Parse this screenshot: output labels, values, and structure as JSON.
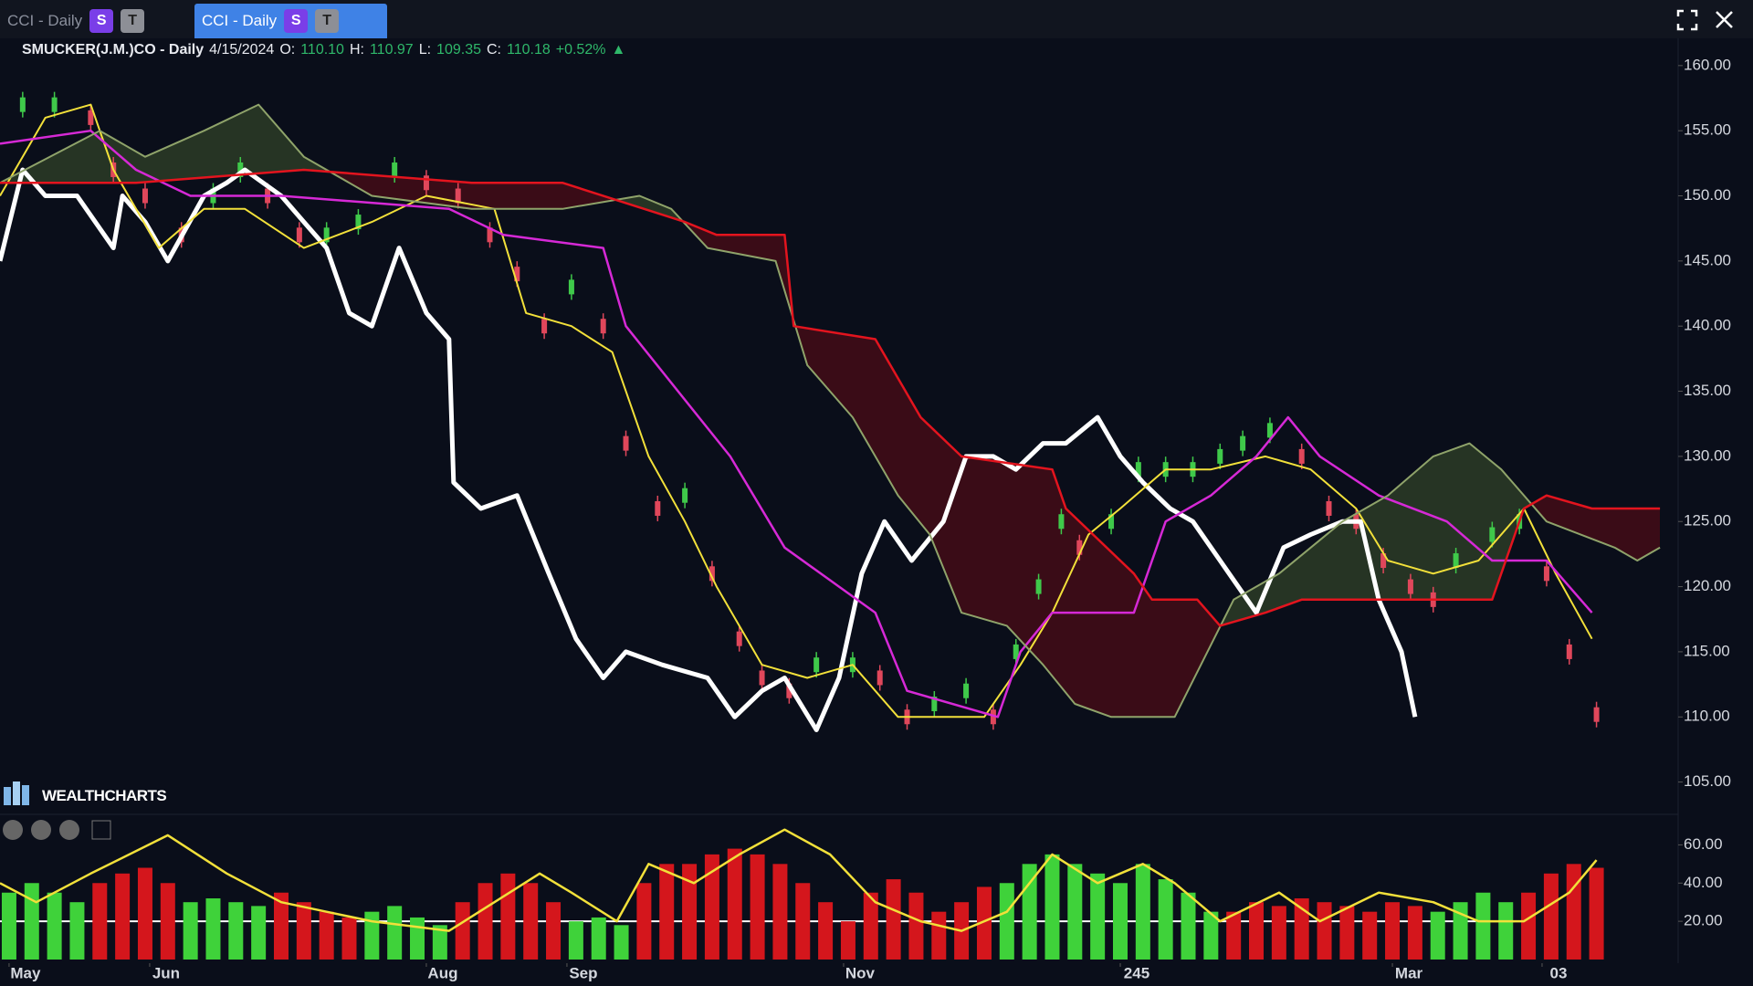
{
  "header": {
    "tabs": [
      {
        "label": "CCI - Daily",
        "badges": [
          "S",
          "T"
        ]
      },
      {
        "label": "CCI - Daily",
        "badges": [
          "S",
          "T"
        ]
      }
    ],
    "symbol": "SMUCKER(J.M.)CO - Daily",
    "date": "4/15/2024",
    "ohlc": [
      {
        "key": "O:",
        "value": "110.10"
      },
      {
        "key": "H:",
        "value": "110.97"
      },
      {
        "key": "L:",
        "value": "109.35"
      },
      {
        "key": "C:",
        "value": "110.18"
      }
    ],
    "change": "+0.52%",
    "brand": "WEALTHCHARTS"
  },
  "chart_data": [
    {
      "type": "line",
      "xlim": [
        -2,
        368
      ],
      "ylim": [
        102.8,
        161.6
      ],
      "yticks": [
        {
          "value": 105,
          "label": "105.00"
        },
        {
          "value": 110,
          "label": "110.00"
        },
        {
          "value": 115,
          "label": "115.00"
        },
        {
          "value": 120,
          "label": "120.00"
        },
        {
          "value": 125,
          "label": "125.00"
        },
        {
          "value": 130,
          "label": "130.00"
        },
        {
          "value": 135,
          "label": "135.00"
        },
        {
          "value": 140,
          "label": "140.00"
        },
        {
          "value": 145,
          "label": "145.00"
        },
        {
          "value": 150,
          "label": "150.00"
        },
        {
          "value": 155,
          "label": "155.00"
        },
        {
          "value": 160,
          "label": "160.00"
        }
      ],
      "cloud_between": [
        4,
        5
      ],
      "cloud_colors": [
        "#263424",
        "#3a0c17"
      ],
      "series": [
        {
          "style": "candle",
          "color": "#3fc94a",
          "down_color": "#e0475b",
          "x": [
            3,
            10,
            18,
            23,
            30,
            38,
            45,
            51,
            57,
            64,
            70,
            77,
            85,
            92,
            99,
            106,
            112,
            118,
            124,
            131,
            136,
            143,
            149,
            155,
            161,
            166,
            172,
            178,
            186,
            192,
            198,
            204,
            211,
            217,
            222,
            227,
            232,
            236,
            243,
            249,
            255,
            261,
            267,
            272,
            278,
            285,
            291,
            297,
            303,
            309,
            314,
            319,
            327,
            333,
            339,
            344,
            350
          ],
          "values": [
            157,
            157,
            156,
            152,
            150,
            147,
            150,
            152,
            150,
            147,
            147,
            148,
            152,
            151,
            150,
            147,
            144,
            140,
            143,
            140,
            131,
            126,
            127,
            121,
            116,
            113,
            112,
            114,
            114,
            113,
            110,
            111,
            112,
            110,
            115,
            120,
            125,
            123,
            125,
            129,
            129,
            129,
            130,
            131,
            132,
            130,
            126,
            125,
            122,
            120,
            119,
            122,
            124,
            125,
            121,
            115,
            110.18
          ]
        },
        {
          "style": "line",
          "color": "#ffffff",
          "width": 5,
          "x": [
            -2,
            3,
            8,
            15,
            23,
            25,
            30,
            35,
            43,
            48,
            52,
            60,
            65,
            70,
            75,
            80,
            86,
            92,
            97,
            98,
            104,
            112,
            119,
            125,
            131,
            136,
            144,
            154,
            160,
            166,
            171,
            178,
            183,
            188,
            193,
            199,
            206,
            211,
            217,
            222,
            228,
            233,
            240,
            245,
            250,
            256,
            261,
            267,
            275,
            281,
            287,
            294,
            298,
            302,
            307,
            310
          ],
          "values": [
            145,
            152,
            150,
            150,
            146,
            150,
            148,
            145,
            150,
            151,
            152,
            150,
            148,
            146,
            141,
            140,
            146,
            141,
            139,
            128,
            126,
            127,
            121,
            116,
            113,
            115,
            114,
            113,
            110,
            112,
            113,
            109,
            113,
            121,
            125,
            122,
            125,
            130,
            130,
            129,
            131,
            131,
            133,
            130,
            128,
            126,
            125,
            122,
            118,
            123,
            124,
            125,
            125,
            119,
            115,
            110
          ]
        },
        {
          "style": "line",
          "color": "#f2e03a",
          "width": 2,
          "x": [
            -2,
            8,
            18,
            23,
            33,
            43,
            52,
            65,
            80,
            92,
            107,
            114,
            124,
            133,
            141,
            149,
            156,
            166,
            176,
            186,
            196,
            206,
            215,
            223,
            230,
            238,
            245,
            255,
            265,
            277,
            287,
            297,
            304,
            314,
            324,
            334,
            341,
            349
          ],
          "values": [
            150,
            156,
            157,
            152,
            146,
            149,
            149,
            146,
            148,
            150,
            149,
            141,
            140,
            138,
            130,
            125,
            120,
            114,
            113,
            114,
            110,
            110,
            110,
            114,
            118,
            124,
            126,
            129,
            129,
            130,
            129,
            126,
            122,
            121,
            122,
            126,
            121,
            116
          ]
        },
        {
          "style": "line",
          "color": "#d629d6",
          "width": 2.5,
          "x": [
            -2,
            18,
            28,
            40,
            60,
            97,
            109,
            131,
            136,
            159,
            171,
            183,
            191,
            198,
            218,
            223,
            230,
            248,
            255,
            265,
            275,
            282,
            289,
            302,
            317,
            327,
            339,
            349
          ],
          "values": [
            154,
            155,
            152,
            150,
            150,
            149,
            147,
            146,
            140,
            130,
            123,
            120,
            118,
            112,
            110,
            115,
            118,
            118,
            125,
            127,
            130,
            133,
            130,
            127,
            125,
            122,
            122,
            118
          ]
        },
        {
          "style": "line",
          "color": "#8fa36a",
          "width": 2,
          "x": [
            -2,
            20,
            30,
            43,
            55,
            65,
            80,
            102,
            122,
            139,
            146,
            154,
            169,
            176,
            186,
            196,
            203,
            210,
            220,
            228,
            235,
            243,
            257,
            270,
            280,
            294,
            304,
            314,
            322,
            329,
            339,
            354,
            359,
            364
          ],
          "values": [
            151,
            155,
            153,
            155,
            157,
            153,
            150,
            149,
            149,
            150,
            149,
            146,
            145,
            137,
            133,
            127,
            124,
            118,
            117,
            114,
            111,
            110,
            110,
            119,
            121,
            125,
            127,
            130,
            131,
            129,
            125,
            123,
            122,
            123
          ]
        },
        {
          "style": "line",
          "color": "#e3141e",
          "width": 2.5,
          "x": [
            -2,
            8,
            28,
            65,
            102,
            122,
            149,
            156,
            171,
            173,
            191,
            201,
            210,
            230,
            233,
            248,
            252,
            262,
            267,
            277,
            285,
            327,
            334,
            339,
            349,
            364
          ],
          "values": [
            151,
            151,
            151,
            152,
            151,
            151,
            148,
            147,
            147,
            140,
            139,
            133,
            130,
            129,
            126,
            121,
            119,
            119,
            117,
            118,
            119,
            119,
            126,
            127,
            126,
            126
          ]
        }
      ]
    },
    {
      "type": "combo",
      "xlim": [
        -2,
        368
      ],
      "ylim": [
        0,
        75
      ],
      "hline": 20,
      "yticks": [
        {
          "value": 20,
          "label": "20.00"
        },
        {
          "value": 40,
          "label": "40.00"
        },
        {
          "value": 60,
          "label": "60.00"
        }
      ],
      "xticks": [
        {
          "value": 0,
          "label": "May"
        },
        {
          "value": 31,
          "label": "Jun"
        },
        {
          "value": 92,
          "label": "Aug"
        },
        {
          "value": 123,
          "label": "Sep"
        },
        {
          "value": 184,
          "label": "Nov"
        },
        245,
        {
          "value": 305,
          "label": "Mar"
        },
        {
          "value": 338,
          "label": "03"
        }
      ],
      "series": [
        {
          "style": "bar",
          "color": "#3fd23a",
          "x": [
            0,
            5,
            10,
            15,
            40,
            45,
            50,
            55,
            80,
            85,
            90,
            95,
            125,
            130,
            135,
            220,
            225,
            230,
            235,
            240,
            245,
            250,
            255,
            260,
            265,
            315,
            320,
            325,
            330
          ],
          "values": [
            35,
            40,
            35,
            30,
            30,
            32,
            30,
            28,
            25,
            28,
            22,
            18,
            20,
            22,
            18,
            40,
            50,
            55,
            50,
            45,
            40,
            50,
            42,
            35,
            25,
            25,
            30,
            35,
            30
          ]
        },
        {
          "style": "bar",
          "color": "#d4161c",
          "x": [
            20,
            25,
            30,
            35,
            60,
            65,
            70,
            75,
            100,
            105,
            110,
            115,
            120,
            140,
            145,
            150,
            155,
            160,
            165,
            170,
            175,
            180,
            185,
            190,
            195,
            200,
            205,
            210,
            215,
            270,
            275,
            280,
            285,
            290,
            295,
            300,
            305,
            310,
            335,
            340,
            345,
            350
          ],
          "values": [
            40,
            45,
            48,
            40,
            35,
            30,
            25,
            22,
            30,
            40,
            45,
            40,
            30,
            40,
            50,
            50,
            55,
            58,
            55,
            50,
            40,
            30,
            20,
            35,
            42,
            35,
            25,
            30,
            38,
            25,
            30,
            28,
            32,
            30,
            28,
            25,
            30,
            28,
            35,
            45,
            50,
            48
          ]
        },
        {
          "style": "line",
          "color": "#f2e03a",
          "width": 2.5,
          "x": [
            -2,
            6,
            18,
            35,
            48,
            60,
            70,
            80,
            97,
            107,
            117,
            124,
            134,
            141,
            151,
            161,
            171,
            181,
            191,
            201,
            210,
            220,
            230,
            240,
            250,
            257,
            267,
            280,
            289,
            302,
            314,
            324,
            334,
            344,
            350
          ],
          "values": [
            40,
            30,
            45,
            65,
            45,
            30,
            25,
            20,
            15,
            30,
            45,
            35,
            20,
            50,
            40,
            55,
            68,
            55,
            30,
            20,
            15,
            25,
            55,
            40,
            50,
            40,
            20,
            35,
            20,
            35,
            30,
            20,
            20,
            35,
            52
          ]
        }
      ]
    }
  ]
}
